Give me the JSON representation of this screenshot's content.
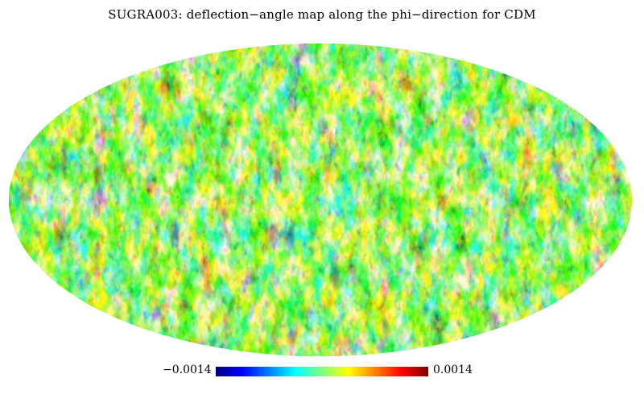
{
  "title": "SUGRA003: deflection−angle map along the phi−direction for CDM",
  "colorbar": {
    "min_label": "−0.0014",
    "max_label": "0.0014",
    "min_value": -0.0014,
    "max_value": 0.0014,
    "colormap": [
      "#00007f",
      "#0000ff",
      "#007fff",
      "#00ffff",
      "#7fff7f",
      "#ffff00",
      "#ff7f00",
      "#ff0000",
      "#7f0000"
    ]
  },
  "map": {
    "projection": "mollweide",
    "field": "deflection-angle (phi-direction)",
    "dominant_colors": [
      "#2fd0ff",
      "#5fe8d0",
      "#ffff40",
      "#ff9020",
      "#e82010",
      "#1040e0"
    ]
  }
}
